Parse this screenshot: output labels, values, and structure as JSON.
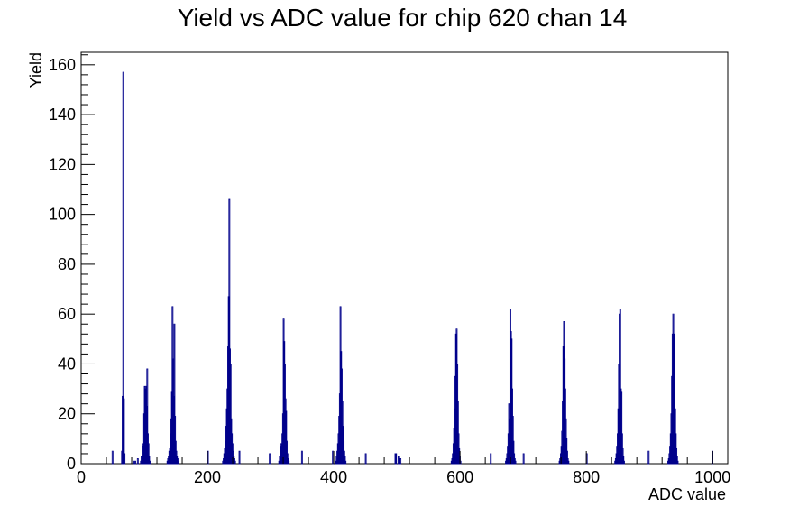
{
  "chart_data": {
    "type": "bar",
    "title": "Yield vs ADC value for chip 620 chan 14",
    "xlabel": "ADC value",
    "ylabel": "Yield",
    "xlim": [
      0,
      1024
    ],
    "ylim": [
      0,
      165
    ],
    "x_ticks": [
      0,
      200,
      400,
      600,
      800,
      1000
    ],
    "y_ticks": [
      0,
      20,
      40,
      60,
      80,
      100,
      120,
      140,
      160
    ],
    "line_color": "#00008b",
    "grid": false,
    "bins": [
      {
        "x": 49,
        "y": 5
      },
      {
        "x": 64,
        "y": 5
      },
      {
        "x": 65,
        "y": 27
      },
      {
        "x": 66,
        "y": 157
      },
      {
        "x": 67,
        "y": 26
      },
      {
        "x": 68,
        "y": 4
      },
      {
        "x": 82,
        "y": 1
      },
      {
        "x": 85,
        "y": 1
      },
      {
        "x": 89,
        "y": 2
      },
      {
        "x": 94,
        "y": 1
      },
      {
        "x": 95,
        "y": 3
      },
      {
        "x": 96,
        "y": 3
      },
      {
        "x": 97,
        "y": 7
      },
      {
        "x": 98,
        "y": 8
      },
      {
        "x": 99,
        "y": 20
      },
      {
        "x": 100,
        "y": 31
      },
      {
        "x": 101,
        "y": 30
      },
      {
        "x": 102,
        "y": 31
      },
      {
        "x": 103,
        "y": 23
      },
      {
        "x": 104,
        "y": 38
      },
      {
        "x": 105,
        "y": 12
      },
      {
        "x": 106,
        "y": 8
      },
      {
        "x": 107,
        "y": 3
      },
      {
        "x": 108,
        "y": 1
      },
      {
        "x": 136,
        "y": 1
      },
      {
        "x": 137,
        "y": 2
      },
      {
        "x": 138,
        "y": 3
      },
      {
        "x": 139,
        "y": 5
      },
      {
        "x": 140,
        "y": 6
      },
      {
        "x": 141,
        "y": 12
      },
      {
        "x": 142,
        "y": 18
      },
      {
        "x": 143,
        "y": 29
      },
      {
        "x": 144,
        "y": 63
      },
      {
        "x": 145,
        "y": 42
      },
      {
        "x": 146,
        "y": 27
      },
      {
        "x": 147,
        "y": 56
      },
      {
        "x": 148,
        "y": 19
      },
      {
        "x": 149,
        "y": 9
      },
      {
        "x": 150,
        "y": 5
      },
      {
        "x": 151,
        "y": 3
      },
      {
        "x": 152,
        "y": 2
      },
      {
        "x": 153,
        "y": 1
      },
      {
        "x": 200,
        "y": 5
      },
      {
        "x": 224,
        "y": 1
      },
      {
        "x": 225,
        "y": 2
      },
      {
        "x": 226,
        "y": 4
      },
      {
        "x": 227,
        "y": 6
      },
      {
        "x": 228,
        "y": 9
      },
      {
        "x": 229,
        "y": 15
      },
      {
        "x": 230,
        "y": 22
      },
      {
        "x": 231,
        "y": 30
      },
      {
        "x": 232,
        "y": 47
      },
      {
        "x": 233,
        "y": 67
      },
      {
        "x": 234,
        "y": 106
      },
      {
        "x": 235,
        "y": 46
      },
      {
        "x": 236,
        "y": 40
      },
      {
        "x": 237,
        "y": 18
      },
      {
        "x": 238,
        "y": 12
      },
      {
        "x": 239,
        "y": 8
      },
      {
        "x": 240,
        "y": 5
      },
      {
        "x": 241,
        "y": 3
      },
      {
        "x": 242,
        "y": 2
      },
      {
        "x": 243,
        "y": 1
      },
      {
        "x": 250,
        "y": 5
      },
      {
        "x": 298,
        "y": 4
      },
      {
        "x": 313,
        "y": 1
      },
      {
        "x": 314,
        "y": 3
      },
      {
        "x": 315,
        "y": 5
      },
      {
        "x": 316,
        "y": 8
      },
      {
        "x": 317,
        "y": 7
      },
      {
        "x": 318,
        "y": 12
      },
      {
        "x": 319,
        "y": 20
      },
      {
        "x": 320,
        "y": 58
      },
      {
        "x": 321,
        "y": 49
      },
      {
        "x": 322,
        "y": 40
      },
      {
        "x": 323,
        "y": 26
      },
      {
        "x": 324,
        "y": 21
      },
      {
        "x": 325,
        "y": 9
      },
      {
        "x": 326,
        "y": 4
      },
      {
        "x": 327,
        "y": 2
      },
      {
        "x": 328,
        "y": 1
      },
      {
        "x": 349,
        "y": 5
      },
      {
        "x": 398,
        "y": 5
      },
      {
        "x": 403,
        "y": 1
      },
      {
        "x": 404,
        "y": 3
      },
      {
        "x": 405,
        "y": 5
      },
      {
        "x": 406,
        "y": 8
      },
      {
        "x": 407,
        "y": 12
      },
      {
        "x": 408,
        "y": 19
      },
      {
        "x": 409,
        "y": 28
      },
      {
        "x": 410,
        "y": 63
      },
      {
        "x": 411,
        "y": 45
      },
      {
        "x": 412,
        "y": 38
      },
      {
        "x": 413,
        "y": 25
      },
      {
        "x": 414,
        "y": 15
      },
      {
        "x": 415,
        "y": 9
      },
      {
        "x": 416,
        "y": 5
      },
      {
        "x": 417,
        "y": 3
      },
      {
        "x": 418,
        "y": 1
      },
      {
        "x": 450,
        "y": 4
      },
      {
        "x": 497,
        "y": 4
      },
      {
        "x": 498,
        "y": 4
      },
      {
        "x": 502,
        "y": 3
      },
      {
        "x": 503,
        "y": 3
      },
      {
        "x": 505,
        "y": 2
      },
      {
        "x": 586,
        "y": 1
      },
      {
        "x": 587,
        "y": 2
      },
      {
        "x": 588,
        "y": 4
      },
      {
        "x": 589,
        "y": 8
      },
      {
        "x": 590,
        "y": 14
      },
      {
        "x": 591,
        "y": 22
      },
      {
        "x": 592,
        "y": 35
      },
      {
        "x": 593,
        "y": 52
      },
      {
        "x": 594,
        "y": 54
      },
      {
        "x": 595,
        "y": 40
      },
      {
        "x": 596,
        "y": 25
      },
      {
        "x": 597,
        "y": 12
      },
      {
        "x": 598,
        "y": 6
      },
      {
        "x": 599,
        "y": 3
      },
      {
        "x": 600,
        "y": 1
      },
      {
        "x": 648,
        "y": 4
      },
      {
        "x": 672,
        "y": 1
      },
      {
        "x": 673,
        "y": 2
      },
      {
        "x": 674,
        "y": 4
      },
      {
        "x": 675,
        "y": 7
      },
      {
        "x": 676,
        "y": 12
      },
      {
        "x": 677,
        "y": 24
      },
      {
        "x": 678,
        "y": 18
      },
      {
        "x": 679,
        "y": 62
      },
      {
        "x": 680,
        "y": 53
      },
      {
        "x": 681,
        "y": 50
      },
      {
        "x": 682,
        "y": 30
      },
      {
        "x": 683,
        "y": 19
      },
      {
        "x": 684,
        "y": 9
      },
      {
        "x": 685,
        "y": 4
      },
      {
        "x": 686,
        "y": 2
      },
      {
        "x": 687,
        "y": 1
      },
      {
        "x": 700,
        "y": 4
      },
      {
        "x": 757,
        "y": 1
      },
      {
        "x": 758,
        "y": 2
      },
      {
        "x": 759,
        "y": 4
      },
      {
        "x": 760,
        "y": 7
      },
      {
        "x": 761,
        "y": 13
      },
      {
        "x": 762,
        "y": 25
      },
      {
        "x": 763,
        "y": 47
      },
      {
        "x": 764,
        "y": 57
      },
      {
        "x": 765,
        "y": 42
      },
      {
        "x": 766,
        "y": 30
      },
      {
        "x": 767,
        "y": 18
      },
      {
        "x": 768,
        "y": 10
      },
      {
        "x": 769,
        "y": 5
      },
      {
        "x": 770,
        "y": 2
      },
      {
        "x": 771,
        "y": 1
      },
      {
        "x": 800,
        "y": 4
      },
      {
        "x": 845,
        "y": 1
      },
      {
        "x": 846,
        "y": 2
      },
      {
        "x": 847,
        "y": 4
      },
      {
        "x": 848,
        "y": 7
      },
      {
        "x": 849,
        "y": 12
      },
      {
        "x": 850,
        "y": 22
      },
      {
        "x": 851,
        "y": 40
      },
      {
        "x": 852,
        "y": 60
      },
      {
        "x": 853,
        "y": 62
      },
      {
        "x": 854,
        "y": 30
      },
      {
        "x": 855,
        "y": 29
      },
      {
        "x": 856,
        "y": 12
      },
      {
        "x": 857,
        "y": 6
      },
      {
        "x": 858,
        "y": 3
      },
      {
        "x": 859,
        "y": 1
      },
      {
        "x": 898,
        "y": 5
      },
      {
        "x": 929,
        "y": 1
      },
      {
        "x": 930,
        "y": 2
      },
      {
        "x": 931,
        "y": 4
      },
      {
        "x": 932,
        "y": 7
      },
      {
        "x": 933,
        "y": 12
      },
      {
        "x": 934,
        "y": 20
      },
      {
        "x": 935,
        "y": 35
      },
      {
        "x": 936,
        "y": 52
      },
      {
        "x": 937,
        "y": 60
      },
      {
        "x": 938,
        "y": 52
      },
      {
        "x": 939,
        "y": 37
      },
      {
        "x": 940,
        "y": 22
      },
      {
        "x": 941,
        "y": 12
      },
      {
        "x": 942,
        "y": 6
      },
      {
        "x": 943,
        "y": 3
      },
      {
        "x": 944,
        "y": 1
      },
      {
        "x": 999,
        "y": 5
      }
    ]
  }
}
